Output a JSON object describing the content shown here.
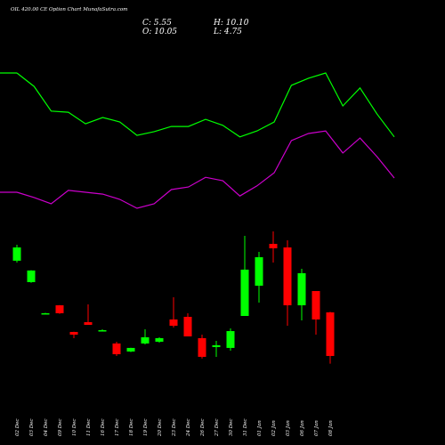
{
  "chart_data": {
    "type": "candlestick",
    "title": "OIL 420.00 CE Option Chart MunafaSutra.com",
    "header_labels": [
      "C: 5.55",
      "H: 10.10",
      "O: 10.05",
      "L: 4.75"
    ],
    "categories": [
      "02 Dec",
      "03 Dec",
      "04 Dec",
      "09 Dec",
      "10 Dec",
      "11 Dec",
      "16 Dec",
      "17 Dec",
      "18 Dec",
      "19 Dec",
      "20 Dec",
      "23 Dec",
      "24 Dec",
      "26 Dec",
      "27 Dec",
      "30 Dec",
      "31 Dec",
      "01 Jan",
      "02 Jan",
      "03 Jan",
      "06 Jan",
      "07 Jan",
      "08 Jan"
    ],
    "open": [
      15.38,
      13.17,
      9.96,
      10.78,
      8.03,
      9.04,
      8.21,
      6.84,
      6.01,
      6.84,
      7.02,
      9.32,
      9.59,
      7.39,
      6.47,
      6.38,
      9.68,
      12.8,
      17.12,
      16.75,
      10.78,
      12.25,
      10.05
    ],
    "high": [
      17.03,
      14.4,
      10.0,
      10.8,
      8.05,
      10.88,
      8.3,
      7.02,
      6.4,
      8.3,
      7.48,
      11.61,
      9.96,
      7.75,
      7.11,
      8.4,
      17.95,
      16.29,
      18.41,
      17.49,
      14.55,
      12.25,
      10.1
    ],
    "low": [
      15.19,
      13.1,
      9.9,
      9.9,
      7.39,
      8.76,
      8.12,
      5.55,
      5.95,
      6.74,
      6.93,
      8.49,
      7.57,
      5.28,
      5.46,
      6.1,
      9.68,
      11.06,
      15.19,
      8.67,
      9.22,
      7.75,
      4.75
    ],
    "close": [
      16.75,
      14.37,
      9.96,
      9.96,
      7.75,
      8.76,
      8.21,
      5.73,
      6.38,
      7.48,
      7.39,
      8.67,
      7.57,
      5.46,
      6.66,
      8.12,
      14.46,
      15.74,
      16.66,
      10.78,
      14.09,
      9.32,
      5.55
    ],
    "up_color": "#00ff00",
    "down_color": "#ff0000",
    "ylim": [
      0,
      25
    ],
    "y2lim": [
      0,
      100
    ],
    "series": [
      {
        "color": "#00ff00",
        "axis": "y2",
        "values": [
          90,
          86.4,
          79.8,
          79.5,
          76.4,
          78.1,
          76.9,
          73.3,
          74.3,
          75.7,
          75.7,
          77.6,
          76,
          72.9,
          74.5,
          76.9,
          86.7,
          88.6,
          90,
          81.2,
          86,
          79,
          72.9
        ]
      },
      {
        "color": "#cc00cc",
        "axis": "y2",
        "values": [
          58.1,
          56.7,
          55,
          58.6,
          58.1,
          57.6,
          56.2,
          53.8,
          55,
          58.8,
          59.5,
          62.1,
          61.2,
          57.1,
          59.8,
          63.3,
          71.9,
          73.8,
          74.5,
          68.6,
          72.6,
          67.6,
          61.9
        ]
      }
    ]
  }
}
